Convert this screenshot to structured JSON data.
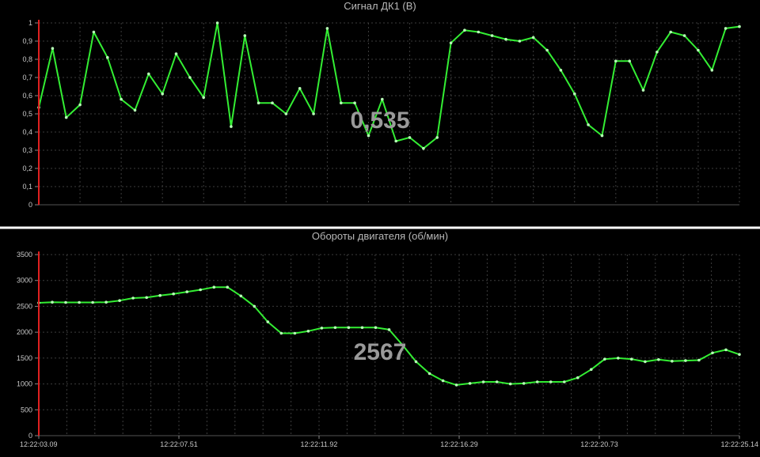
{
  "chart_data": [
    {
      "type": "line",
      "title": "Сигнал ДК1  (В)",
      "readout": "0,535",
      "ylim": [
        0,
        1
      ],
      "yticks": [
        "0",
        "0,1",
        "0,2",
        "0,3",
        "0,4",
        "0,5",
        "0,6",
        "0,7",
        "0,8",
        "0,9",
        "1"
      ],
      "grid": true,
      "series": [
        {
          "color": "#33ee33",
          "values": [
            0.535,
            0.86,
            0.48,
            0.55,
            0.95,
            0.81,
            0.58,
            0.52,
            0.72,
            0.61,
            0.83,
            0.7,
            0.59,
            1.0,
            0.43,
            0.93,
            0.56,
            0.56,
            0.5,
            0.64,
            0.5,
            0.97,
            0.56,
            0.56,
            0.38,
            0.58,
            0.35,
            0.37,
            0.31,
            0.37,
            0.89,
            0.96,
            0.95,
            0.93,
            0.91,
            0.9,
            0.92,
            0.85,
            0.74,
            0.61,
            0.44,
            0.38,
            0.79,
            0.79,
            0.63,
            0.84,
            0.95,
            0.93,
            0.85,
            0.74,
            0.97,
            0.98
          ]
        }
      ]
    },
    {
      "type": "line",
      "title": "Обороты двигателя   (об/мин)",
      "readout": "2567",
      "ylim": [
        0,
        3500
      ],
      "yticks": [
        "0",
        "500",
        "1000",
        "1500",
        "2000",
        "2500",
        "3000",
        "3500"
      ],
      "grid": true,
      "x_tick_labels": [
        "12:22:03.09",
        "12:22:07.51",
        "12:22:11.92",
        "12:22:16.29",
        "12:22:20.73",
        "12:22:25.14"
      ],
      "series": [
        {
          "color": "#33ee33",
          "values": [
            2567,
            2580,
            2575,
            2575,
            2575,
            2580,
            2610,
            2660,
            2670,
            2710,
            2740,
            2780,
            2820,
            2870,
            2870,
            2700,
            2500,
            2200,
            1980,
            1980,
            2020,
            2080,
            2090,
            2090,
            2090,
            2090,
            2050,
            1750,
            1430,
            1200,
            1060,
            980,
            1010,
            1040,
            1040,
            1000,
            1010,
            1040,
            1040,
            1040,
            1120,
            1280,
            1480,
            1500,
            1480,
            1430,
            1470,
            1440,
            1450,
            1460,
            1600,
            1660,
            1570
          ]
        }
      ]
    }
  ]
}
